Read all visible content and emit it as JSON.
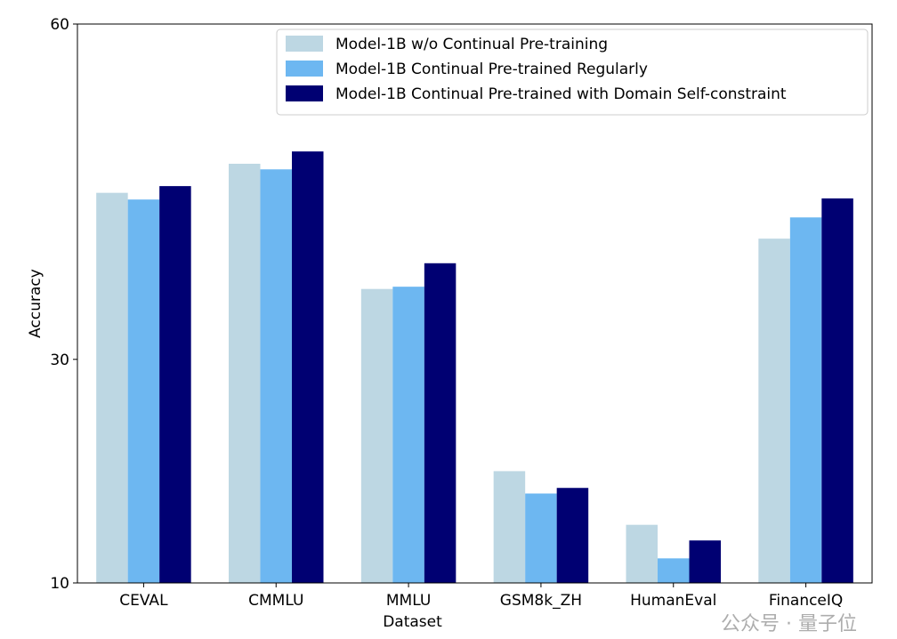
{
  "chart_data": {
    "type": "bar",
    "title": "",
    "xlabel": "Dataset",
    "ylabel": "Accuracy",
    "ylim": [
      10,
      60
    ],
    "yticks": [
      10,
      30,
      60
    ],
    "grid": false,
    "legend_position": "top-right",
    "categories": [
      "CEVAL",
      "CMMLU",
      "MMLU",
      "GSM8k_ZH",
      "HumanEval",
      "FinanceIQ"
    ],
    "series": [
      {
        "name": "Model-1B w/o Continual Pre-training",
        "color": "#bdd7e3",
        "values": [
          44.9,
          47.5,
          36.3,
          20.0,
          15.2,
          40.8
        ]
      },
      {
        "name": "Model-1B Continual Pre-trained Regularly",
        "color": "#6db7f1",
        "values": [
          44.3,
          47.0,
          36.5,
          18.0,
          12.2,
          42.7
        ]
      },
      {
        "name": "Model-1B Continual Pre-trained with Domain Self-constraint",
        "color": "#000072",
        "values": [
          45.5,
          48.6,
          38.6,
          18.5,
          13.8,
          44.4
        ]
      }
    ]
  },
  "watermark": "公众号 · 量子位"
}
